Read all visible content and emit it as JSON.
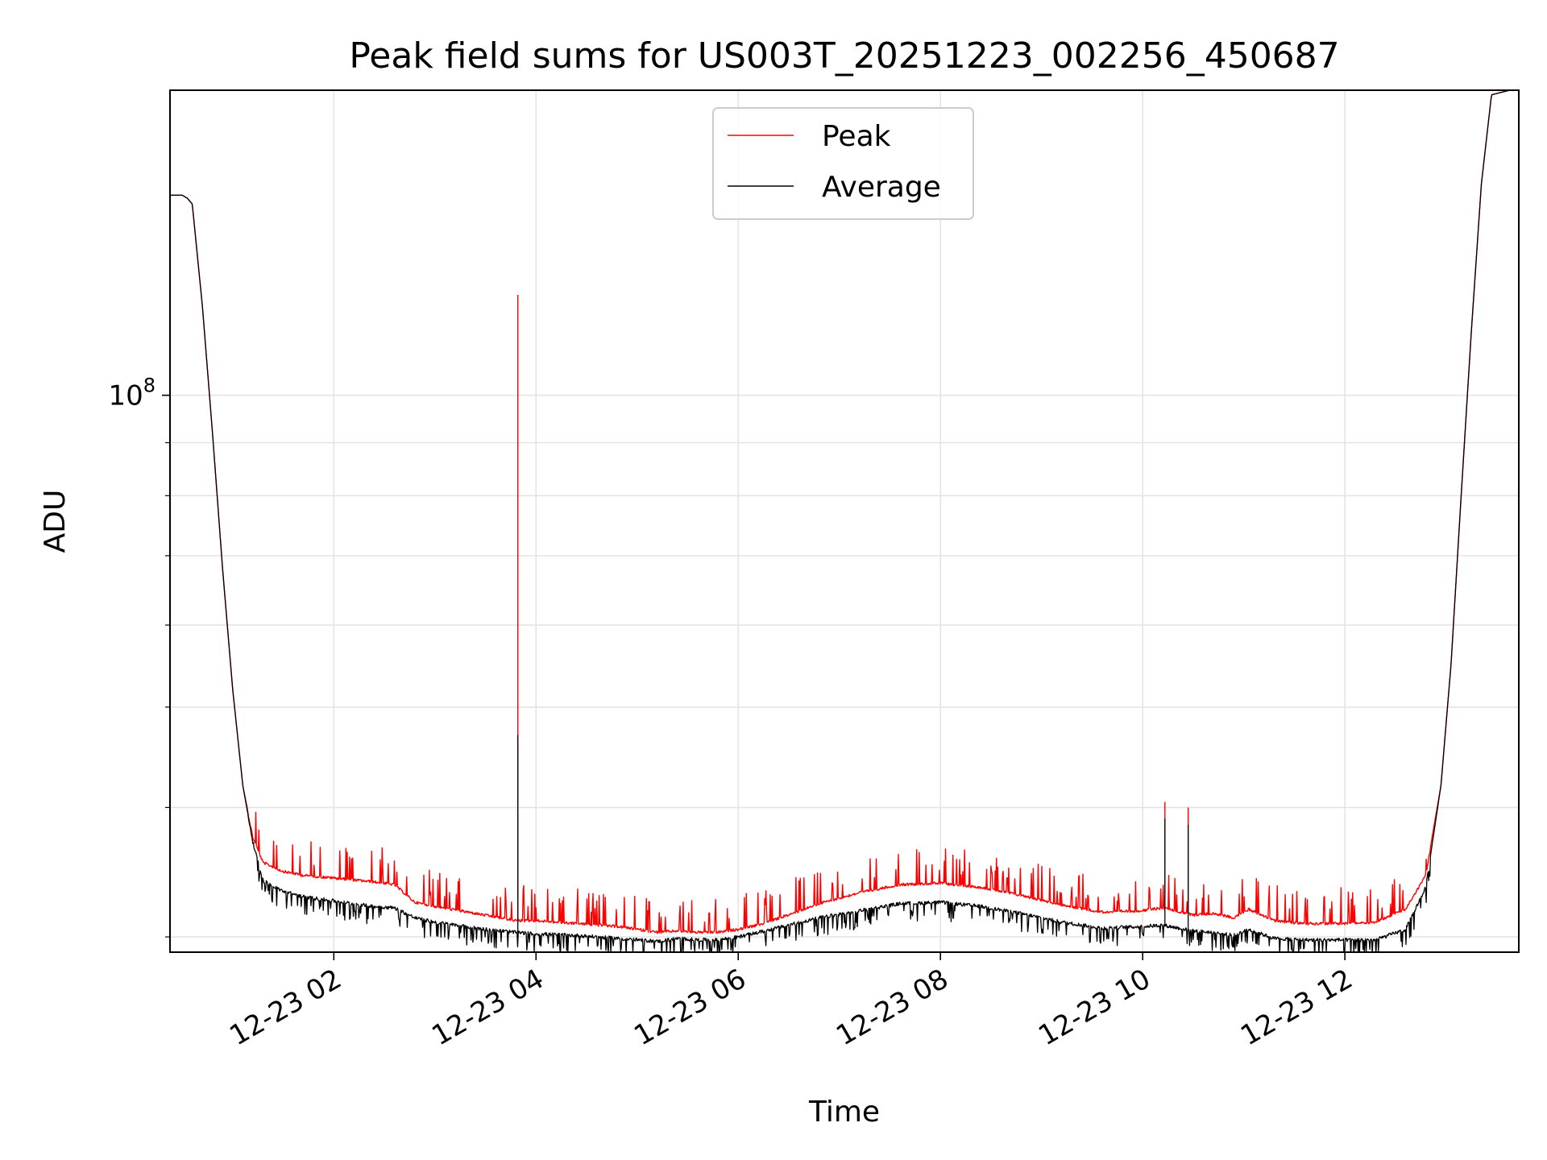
{
  "chart_data": {
    "type": "line",
    "title": "Peak field sums for US003T_20251223_002256_450687",
    "xlabel": "Time",
    "ylabel": "ADU",
    "yscale": "log",
    "grid": true,
    "legend_loc": "upper center",
    "x_unit": "hours since 2025-12-23 00:00",
    "xlim": [
      0.38,
      13.72
    ],
    "ylim": [
      29000000,
      197000000
    ],
    "x_ticks": [
      {
        "value": 2,
        "label": "12-23 02"
      },
      {
        "value": 4,
        "label": "12-23 04"
      },
      {
        "value": 6,
        "label": "12-23 06"
      },
      {
        "value": 8,
        "label": "12-23 08"
      },
      {
        "value": 10,
        "label": "12-23 10"
      },
      {
        "value": 12,
        "label": "12-23 12"
      }
    ],
    "y_major_ticks": [
      {
        "value": 100000000,
        "base": "10",
        "exp": "8"
      }
    ],
    "y_minor_ticks": [
      30000000,
      40000000,
      50000000,
      60000000,
      70000000,
      80000000,
      90000000,
      200000000
    ],
    "series": [
      {
        "name": "Peak",
        "color": "#ff0000",
        "points": [
          [
            0.38,
            156000000.0
          ],
          [
            0.5,
            156000000.0
          ],
          [
            0.55,
            155000000.0
          ],
          [
            0.6,
            153000000.0
          ],
          [
            0.7,
            122000000.0
          ],
          [
            0.8,
            92000000.0
          ],
          [
            0.9,
            68000000.0
          ],
          [
            1.0,
            52000000.0
          ],
          [
            1.1,
            42000000.0
          ],
          [
            1.2,
            37500000.0
          ],
          [
            1.3,
            35500000.0
          ],
          [
            1.5,
            34800000.0
          ],
          [
            1.7,
            34500000.0
          ],
          [
            2.0,
            34300000.0
          ],
          [
            2.4,
            34000000.0
          ],
          [
            2.6,
            33800000.0
          ],
          [
            2.8,
            32500000.0
          ],
          [
            3.0,
            32200000.0
          ],
          [
            3.4,
            31700000.0
          ],
          [
            3.8,
            31200000.0
          ],
          [
            4.0,
            31200000.0
          ],
          [
            4.4,
            31000000.0
          ],
          [
            4.8,
            30800000.0
          ],
          [
            5.0,
            30600000.0
          ],
          [
            5.2,
            30400000.0
          ],
          [
            5.4,
            30500000.0
          ],
          [
            5.6,
            30400000.0
          ],
          [
            5.8,
            30400000.0
          ],
          [
            6.0,
            30600000.0
          ],
          [
            6.2,
            30900000.0
          ],
          [
            6.5,
            31600000.0
          ],
          [
            6.8,
            32400000.0
          ],
          [
            7.2,
            33200000.0
          ],
          [
            7.6,
            33800000.0
          ],
          [
            8.0,
            33900000.0
          ],
          [
            8.4,
            33600000.0
          ],
          [
            8.8,
            33000000.0
          ],
          [
            9.2,
            32300000.0
          ],
          [
            9.6,
            31800000.0
          ],
          [
            10.0,
            31900000.0
          ],
          [
            10.2,
            32100000.0
          ],
          [
            10.5,
            31600000.0
          ],
          [
            10.7,
            31700000.0
          ],
          [
            10.9,
            31400000.0
          ],
          [
            11.05,
            32000000.0
          ],
          [
            11.3,
            31200000.0
          ],
          [
            11.6,
            31000000.0
          ],
          [
            12.0,
            31000000.0
          ],
          [
            12.3,
            31100000.0
          ],
          [
            12.6,
            32000000.0
          ],
          [
            12.8,
            34500000.0
          ],
          [
            12.95,
            42000000.0
          ],
          [
            13.05,
            55000000.0
          ],
          [
            13.15,
            80000000.0
          ],
          [
            13.25,
            115000000.0
          ],
          [
            13.35,
            160000000.0
          ],
          [
            13.45,
            195000000.0
          ],
          [
            13.72,
            198000000.0
          ]
        ],
        "spikes": [
          [
            3.82,
            125000000.0
          ],
          [
            10.22,
            40500000.0
          ],
          [
            10.45,
            40000000.0
          ]
        ]
      },
      {
        "name": "Average",
        "color": "#000000",
        "points": [
          [
            0.38,
            156000000.0
          ],
          [
            0.5,
            156000000.0
          ],
          [
            0.55,
            155000000.0
          ],
          [
            0.6,
            153000000.0
          ],
          [
            0.7,
            122000000.0
          ],
          [
            0.8,
            92000000.0
          ],
          [
            0.9,
            68000000.0
          ],
          [
            1.0,
            52000000.0
          ],
          [
            1.1,
            42000000.0
          ],
          [
            1.2,
            37000000.0
          ],
          [
            1.3,
            34000000.0
          ],
          [
            1.5,
            33200000.0
          ],
          [
            1.7,
            32800000.0
          ],
          [
            2.0,
            32500000.0
          ],
          [
            2.4,
            32100000.0
          ],
          [
            2.6,
            32000000.0
          ],
          [
            2.8,
            31300000.0
          ],
          [
            3.0,
            31000000.0
          ],
          [
            3.4,
            30600000.0
          ],
          [
            3.8,
            30300000.0
          ],
          [
            4.0,
            30200000.0
          ],
          [
            4.4,
            30100000.0
          ],
          [
            4.8,
            29900000.0
          ],
          [
            5.0,
            29800000.0
          ],
          [
            5.2,
            29700000.0
          ],
          [
            5.4,
            29900000.0
          ],
          [
            5.6,
            29800000.0
          ],
          [
            5.8,
            29800000.0
          ],
          [
            6.0,
            30000000.0
          ],
          [
            6.2,
            30300000.0
          ],
          [
            6.5,
            30800000.0
          ],
          [
            6.8,
            31300000.0
          ],
          [
            7.2,
            31800000.0
          ],
          [
            7.6,
            32300000.0
          ],
          [
            8.0,
            32400000.0
          ],
          [
            8.4,
            32100000.0
          ],
          [
            8.8,
            31600000.0
          ],
          [
            9.2,
            31000000.0
          ],
          [
            9.6,
            30600000.0
          ],
          [
            10.0,
            30700000.0
          ],
          [
            10.2,
            30800000.0
          ],
          [
            10.5,
            30400000.0
          ],
          [
            10.7,
            30300000.0
          ],
          [
            10.9,
            30100000.0
          ],
          [
            11.05,
            30500000.0
          ],
          [
            11.3,
            29900000.0
          ],
          [
            11.6,
            29800000.0
          ],
          [
            12.0,
            29800000.0
          ],
          [
            12.3,
            29800000.0
          ],
          [
            12.6,
            30500000.0
          ],
          [
            12.8,
            33500000.0
          ],
          [
            12.95,
            42000000.0
          ],
          [
            13.05,
            55000000.0
          ],
          [
            13.15,
            80000000.0
          ],
          [
            13.25,
            115000000.0
          ],
          [
            13.35,
            160000000.0
          ],
          [
            13.45,
            195000000.0
          ],
          [
            13.72,
            198000000.0
          ]
        ],
        "spikes": [
          [
            3.82,
            47000000.0
          ],
          [
            10.22,
            39000000.0
          ],
          [
            10.45,
            38500000.0
          ]
        ]
      }
    ]
  }
}
